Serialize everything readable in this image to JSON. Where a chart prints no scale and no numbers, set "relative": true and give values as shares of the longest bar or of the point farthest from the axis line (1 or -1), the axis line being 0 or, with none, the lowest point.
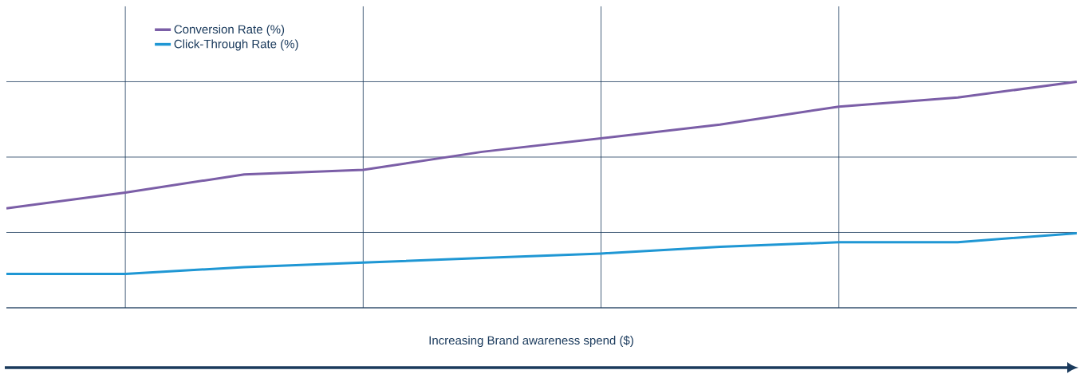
{
  "chart_data": {
    "type": "line",
    "relative": true,
    "xlabel": "Increasing Brand awareness spend ($)",
    "categories": [
      null,
      null,
      null,
      null,
      null,
      null,
      null,
      null,
      null,
      null
    ],
    "series": [
      {
        "name": "Conversion Rate (%)",
        "color": "#7b5ea7",
        "values": [
          0.44,
          0.51,
          0.59,
          0.61,
          0.69,
          0.75,
          0.81,
          0.89,
          0.93,
          1.0
        ]
      },
      {
        "name": "Click-Through Rate (%)",
        "color": "#1f97d4",
        "values": [
          0.15,
          0.15,
          0.18,
          0.2,
          0.22,
          0.24,
          0.27,
          0.29,
          0.29,
          0.33
        ]
      }
    ],
    "grid": true,
    "legend": "top left",
    "marker": "none",
    "line_style": "solid"
  }
}
